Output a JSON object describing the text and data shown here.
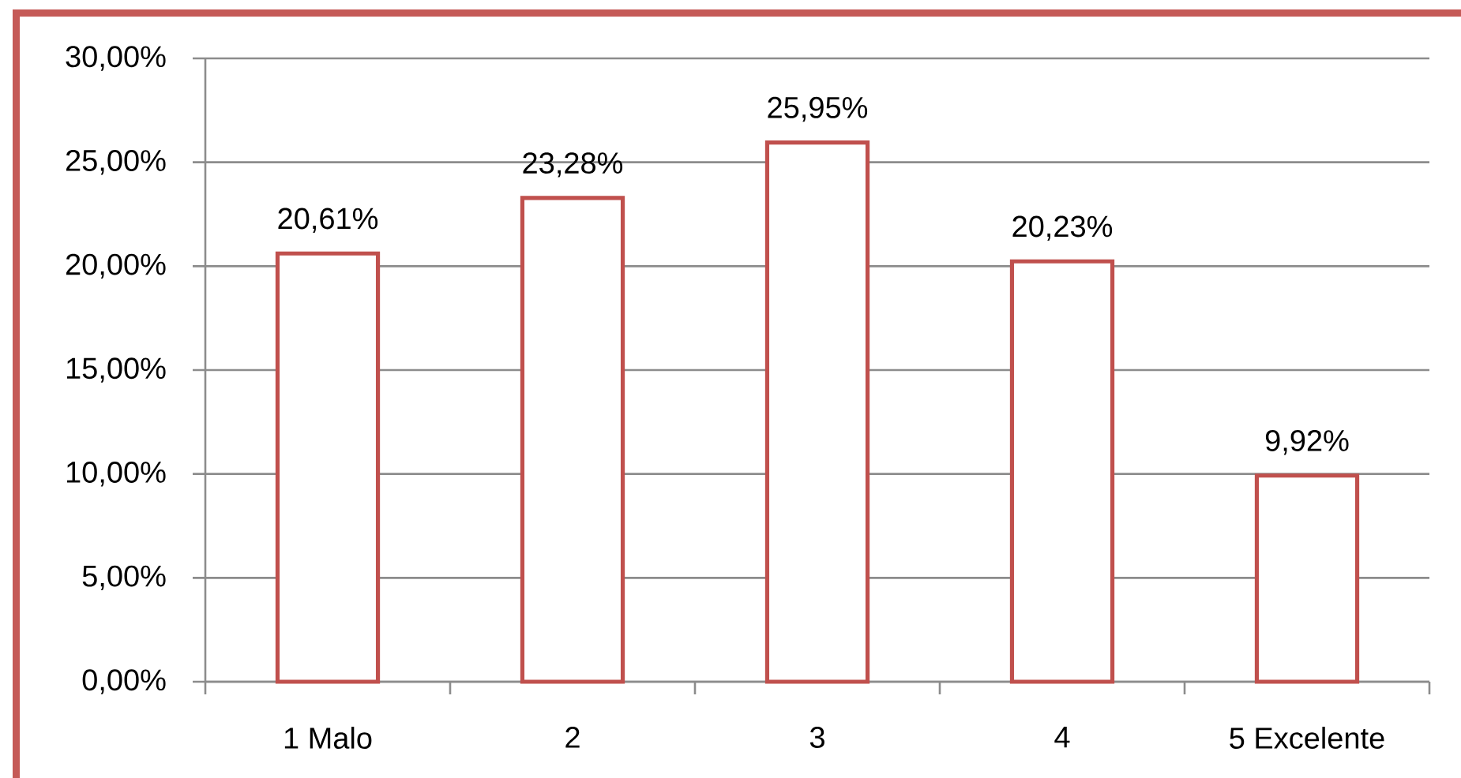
{
  "chart_data": {
    "type": "bar",
    "categories": [
      "1 Malo",
      "2",
      "3",
      "4",
      "5 Excelente"
    ],
    "values": [
      20.61,
      23.28,
      25.95,
      20.23,
      9.92
    ],
    "value_labels": [
      "20,61%",
      "23,28%",
      "25,95%",
      "20,23%",
      "9,92%"
    ],
    "color": "#c0504d",
    "ylim": [
      0,
      30
    ],
    "yticks": [
      {
        "value": 0,
        "label": "0,00%"
      },
      {
        "value": 5,
        "label": "5,00%"
      },
      {
        "value": 10,
        "label": "10,00%"
      },
      {
        "value": 15,
        "label": "15,00%"
      },
      {
        "value": 20,
        "label": "20,00%"
      },
      {
        "value": 25,
        "label": "25,00%"
      },
      {
        "value": 30,
        "label": "30,00%"
      }
    ],
    "grid": "y"
  }
}
